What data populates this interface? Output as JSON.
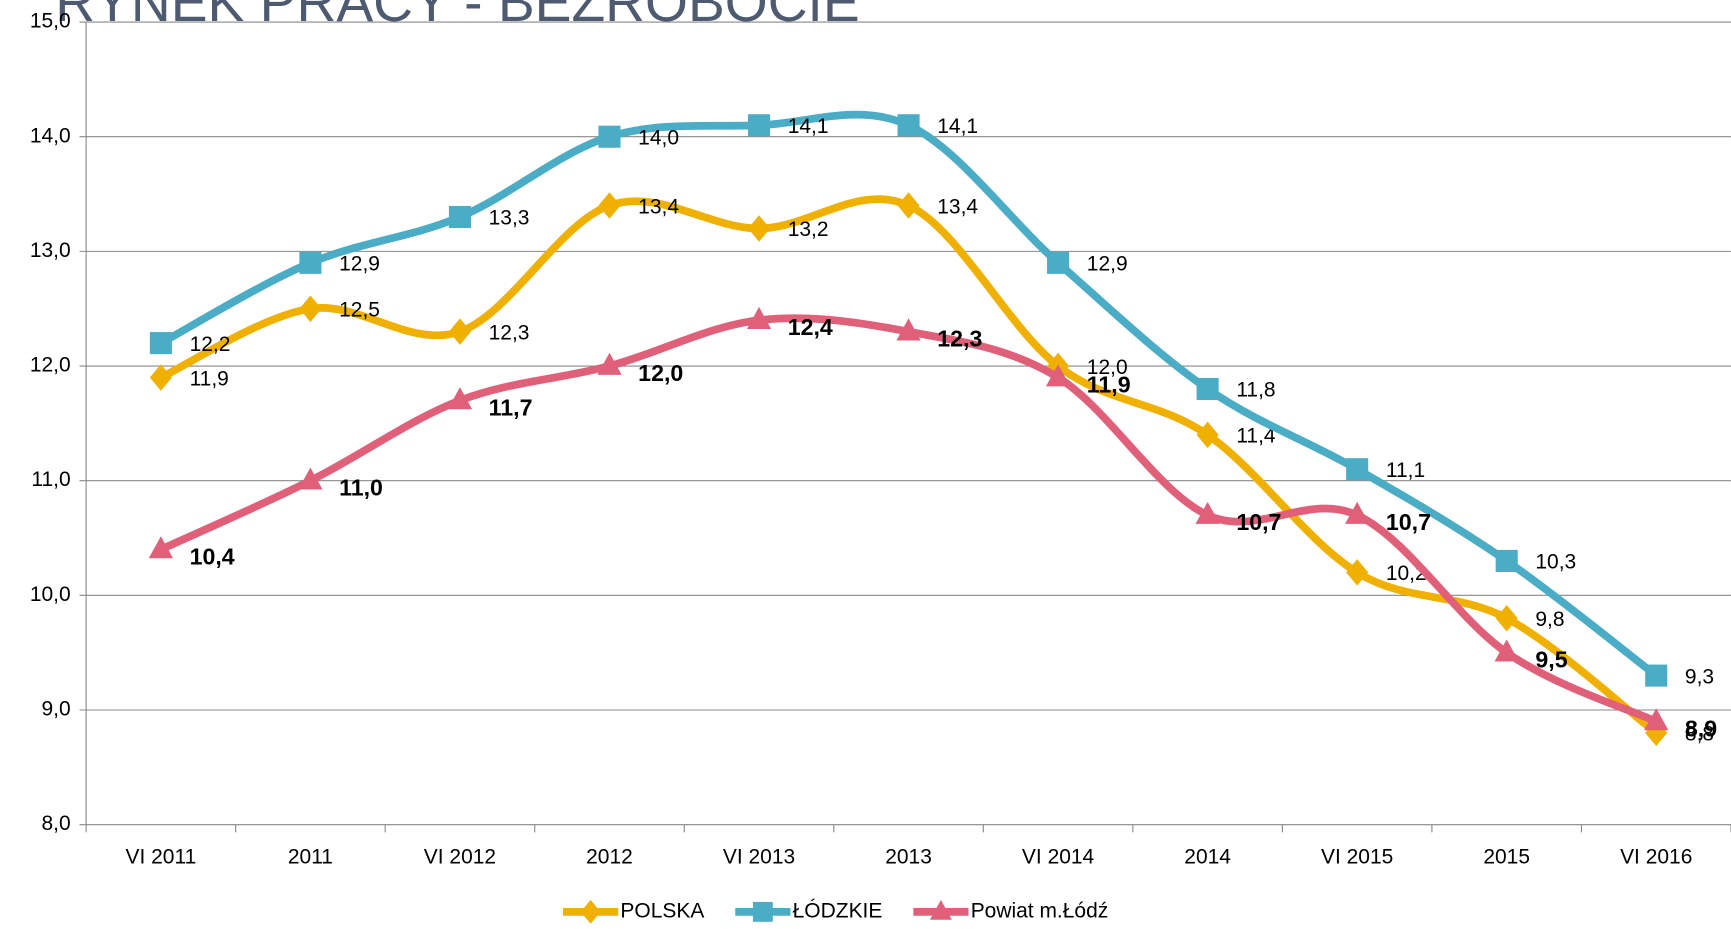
{
  "chart_data": {
    "type": "line",
    "title": "RYNEK PRACY - BEZROBOCIE",
    "categories": [
      "VI 2011",
      "2011",
      "VI 2012",
      "2012",
      "VI 2013",
      "2013",
      "VI 2014",
      "2014",
      "VI 2015",
      "2015",
      "VI 2016"
    ],
    "series": [
      {
        "name": "POLSKA",
        "color": "#f0b000",
        "marker": "diamond",
        "values": [
          11.9,
          12.5,
          12.3,
          13.4,
          13.2,
          13.4,
          12.0,
          11.4,
          10.2,
          9.8,
          8.8
        ],
        "value_labels": [
          "11,9",
          "12,5",
          "12,3",
          "13,4",
          "13,2",
          "13,4",
          "12,0",
          "11,4",
          "10,2",
          "9,8",
          "8,8"
        ]
      },
      {
        "name": "ŁÓDZKIE",
        "color": "#4bacc6",
        "marker": "square",
        "values": [
          12.2,
          12.9,
          13.3,
          14.0,
          14.1,
          14.1,
          12.9,
          11.8,
          11.1,
          10.3,
          9.3
        ],
        "value_labels": [
          "12,2",
          "12,9",
          "13,3",
          "14,0",
          "14,1",
          "14,1",
          "12,9",
          "11,8",
          "11,1",
          "10,3",
          "9,3"
        ]
      },
      {
        "name": "Powiat m.Łódź",
        "color": "#e0607a",
        "marker": "triangle",
        "values": [
          10.4,
          11.0,
          11.7,
          12.0,
          12.4,
          12.3,
          11.9,
          10.7,
          10.7,
          9.5,
          8.9
        ],
        "value_labels": [
          "10,4",
          "11,0",
          "11,7",
          "12,0",
          "12,4",
          "12,3",
          "11,9",
          "10,7",
          "10,7",
          "9,5",
          "8,9"
        ]
      }
    ],
    "ylim": [
      8,
      15
    ],
    "yticks": [
      {
        "value": 8,
        "label": "8,0"
      },
      {
        "value": 9,
        "label": "9,0"
      },
      {
        "value": 10,
        "label": "10,0"
      },
      {
        "value": 11,
        "label": "11,0"
      },
      {
        "value": 12,
        "label": "12,0"
      },
      {
        "value": 13,
        "label": "13,0"
      },
      {
        "value": 14,
        "label": "14,0"
      },
      {
        "value": 15,
        "label": "15,0"
      }
    ],
    "grid": true,
    "smooth": true,
    "legend": "bottom"
  }
}
